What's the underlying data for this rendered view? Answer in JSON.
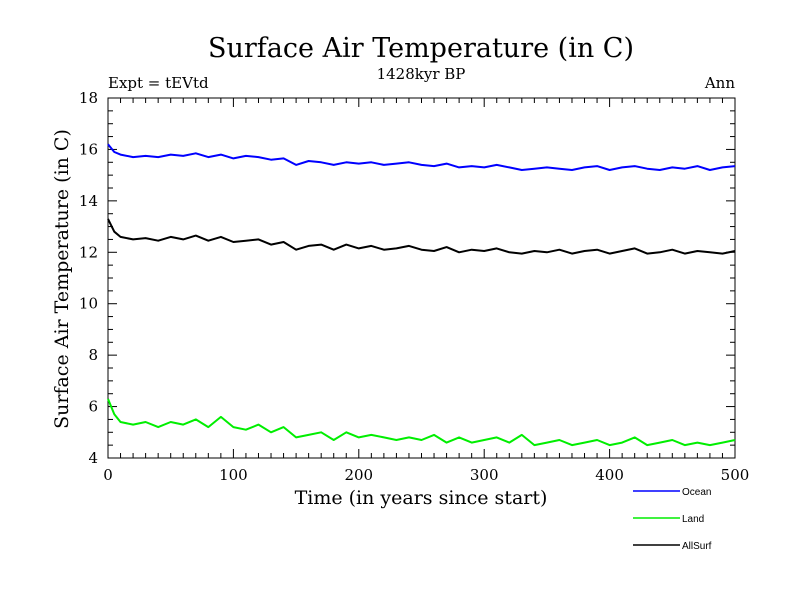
{
  "chart_data": {
    "type": "line",
    "title": "Surface Air Temperature (in C)",
    "subtitle": "1428kyr BP",
    "annotation_left": "Expt = tEVtd",
    "annotation_right": "Ann",
    "xlabel": "Time (in years since start)",
    "ylabel": "Surface Air Temperature (in C)",
    "xlim": [
      0,
      500
    ],
    "ylim": [
      4,
      18
    ],
    "xticks": [
      0,
      100,
      200,
      300,
      400,
      500
    ],
    "yticks": [
      4,
      6,
      8,
      10,
      12,
      14,
      16,
      18
    ],
    "grid": false,
    "legend_position": "bottom-right",
    "series": [
      {
        "name": "Ocean",
        "color": "#0000ff",
        "x": [
          0,
          5,
          10,
          20,
          30,
          40,
          50,
          60,
          70,
          80,
          90,
          100,
          110,
          120,
          130,
          140,
          150,
          160,
          170,
          180,
          190,
          200,
          210,
          220,
          230,
          240,
          250,
          260,
          270,
          280,
          290,
          300,
          310,
          320,
          330,
          340,
          350,
          360,
          370,
          380,
          390,
          400,
          410,
          420,
          430,
          440,
          450,
          460,
          470,
          480,
          490,
          500
        ],
        "values": [
          16.2,
          15.9,
          15.8,
          15.7,
          15.75,
          15.7,
          15.8,
          15.75,
          15.85,
          15.7,
          15.8,
          15.65,
          15.75,
          15.7,
          15.6,
          15.65,
          15.4,
          15.55,
          15.5,
          15.4,
          15.5,
          15.45,
          15.5,
          15.4,
          15.45,
          15.5,
          15.4,
          15.35,
          15.45,
          15.3,
          15.35,
          15.3,
          15.4,
          15.3,
          15.2,
          15.25,
          15.3,
          15.25,
          15.2,
          15.3,
          15.35,
          15.2,
          15.3,
          15.35,
          15.25,
          15.2,
          15.3,
          15.25,
          15.35,
          15.2,
          15.3,
          15.35
        ]
      },
      {
        "name": "Land",
        "color": "#00ee00",
        "x": [
          0,
          5,
          10,
          20,
          30,
          40,
          50,
          60,
          70,
          80,
          90,
          100,
          110,
          120,
          130,
          140,
          150,
          160,
          170,
          180,
          190,
          200,
          210,
          220,
          230,
          240,
          250,
          260,
          270,
          280,
          290,
          300,
          310,
          320,
          330,
          340,
          350,
          360,
          370,
          380,
          390,
          400,
          410,
          420,
          430,
          440,
          450,
          460,
          470,
          480,
          490,
          500
        ],
        "values": [
          6.3,
          5.7,
          5.4,
          5.3,
          5.4,
          5.2,
          5.4,
          5.3,
          5.5,
          5.2,
          5.6,
          5.2,
          5.1,
          5.3,
          5.0,
          5.2,
          4.8,
          4.9,
          5.0,
          4.7,
          5.0,
          4.8,
          4.9,
          4.8,
          4.7,
          4.8,
          4.7,
          4.9,
          4.6,
          4.8,
          4.6,
          4.7,
          4.8,
          4.6,
          4.9,
          4.5,
          4.6,
          4.7,
          4.5,
          4.6,
          4.7,
          4.5,
          4.6,
          4.8,
          4.5,
          4.6,
          4.7,
          4.5,
          4.6,
          4.5,
          4.6,
          4.7
        ]
      },
      {
        "name": "AllSurf",
        "color": "#000000",
        "x": [
          0,
          5,
          10,
          20,
          30,
          40,
          50,
          60,
          70,
          80,
          90,
          100,
          110,
          120,
          130,
          140,
          150,
          160,
          170,
          180,
          190,
          200,
          210,
          220,
          230,
          240,
          250,
          260,
          270,
          280,
          290,
          300,
          310,
          320,
          330,
          340,
          350,
          360,
          370,
          380,
          390,
          400,
          410,
          420,
          430,
          440,
          450,
          460,
          470,
          480,
          490,
          500
        ],
        "values": [
          13.3,
          12.8,
          12.6,
          12.5,
          12.55,
          12.45,
          12.6,
          12.5,
          12.65,
          12.45,
          12.6,
          12.4,
          12.45,
          12.5,
          12.3,
          12.4,
          12.1,
          12.25,
          12.3,
          12.1,
          12.3,
          12.15,
          12.25,
          12.1,
          12.15,
          12.25,
          12.1,
          12.05,
          12.2,
          12.0,
          12.1,
          12.05,
          12.15,
          12.0,
          11.95,
          12.05,
          12.0,
          12.1,
          11.95,
          12.05,
          12.1,
          11.95,
          12.05,
          12.15,
          11.95,
          12.0,
          12.1,
          11.95,
          12.05,
          12.0,
          11.95,
          12.05
        ]
      }
    ]
  }
}
